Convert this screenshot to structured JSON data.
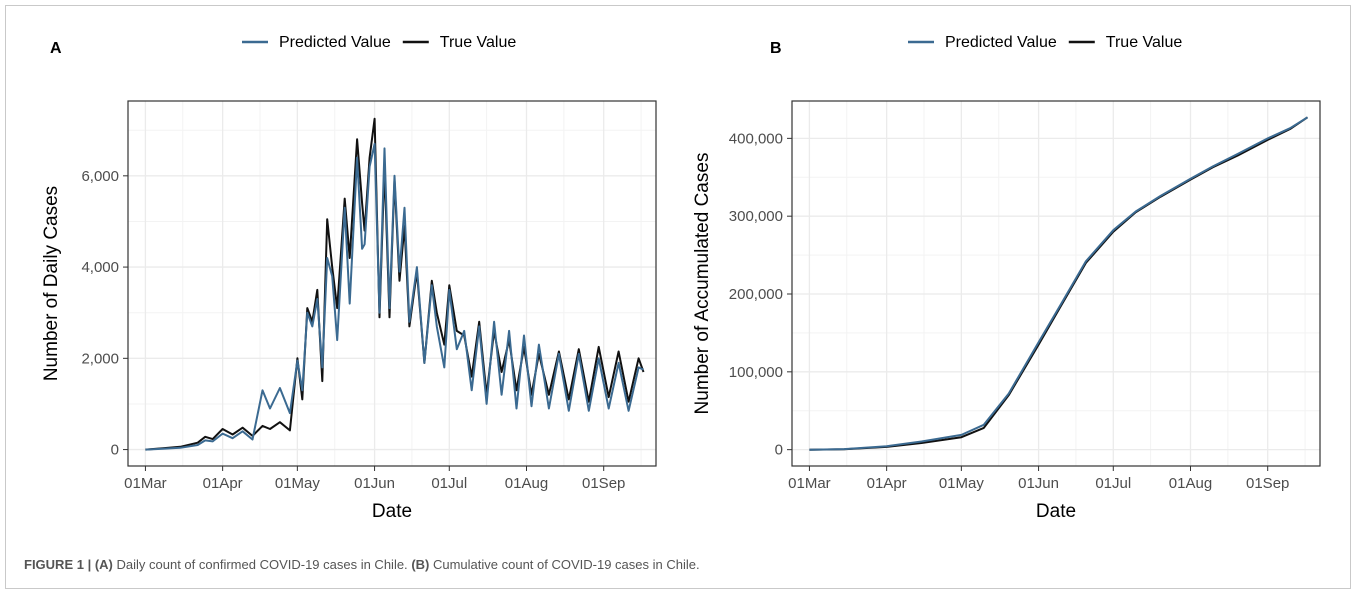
{
  "caption": {
    "figure_label": "FIGURE 1 |",
    "a_label": "(A)",
    "a_text": "Daily count of confirmed COVID-19 cases in Chile.",
    "b_label": "(B)",
    "b_text": "Cumulative count of COVID-19 cases in Chile."
  },
  "colors": {
    "predicted": "#3b6a91",
    "true": "#111111",
    "panel_border": "#333333",
    "grid": "#ebebeb",
    "axis_text": "#4d4d4d"
  },
  "chart_data": [
    {
      "panel": "A",
      "type": "line",
      "title": "",
      "xlabel": "Date",
      "ylabel": "Number of Daily Cases",
      "x_tick_labels": [
        "01Mar",
        "01Apr",
        "01May",
        "01Jun",
        "01Jul",
        "01Aug",
        "01Sep"
      ],
      "y_ticks": [
        0,
        2000,
        4000,
        6000
      ],
      "y_tick_labels": [
        "0",
        "2,000",
        "4,000",
        "6,000"
      ],
      "xlim": [
        "2020-02-23",
        "2020-09-22"
      ],
      "ylim": [
        -360,
        7640
      ],
      "grid": true,
      "legend": {
        "position": "top",
        "entries": [
          "Predicted Value",
          "True Value"
        ]
      },
      "series": [
        {
          "name": "True Value",
          "x": [
            "2020-03-01",
            "2020-03-08",
            "2020-03-15",
            "2020-03-22",
            "2020-03-25",
            "2020-03-28",
            "2020-04-01",
            "2020-04-05",
            "2020-04-09",
            "2020-04-13",
            "2020-04-17",
            "2020-04-20",
            "2020-04-24",
            "2020-04-28",
            "2020-05-01",
            "2020-05-03",
            "2020-05-05",
            "2020-05-07",
            "2020-05-09",
            "2020-05-11",
            "2020-05-13",
            "2020-05-15",
            "2020-05-17",
            "2020-05-20",
            "2020-05-22",
            "2020-05-25",
            "2020-05-27",
            "2020-05-28",
            "2020-05-30",
            "2020-06-01",
            "2020-06-03",
            "2020-06-05",
            "2020-06-07",
            "2020-06-09",
            "2020-06-11",
            "2020-06-13",
            "2020-06-15",
            "2020-06-18",
            "2020-06-21",
            "2020-06-24",
            "2020-06-26",
            "2020-06-29",
            "2020-07-01",
            "2020-07-04",
            "2020-07-07",
            "2020-07-10",
            "2020-07-13",
            "2020-07-16",
            "2020-07-19",
            "2020-07-22",
            "2020-07-25",
            "2020-07-28",
            "2020-07-31",
            "2020-08-03",
            "2020-08-06",
            "2020-08-10",
            "2020-08-14",
            "2020-08-18",
            "2020-08-22",
            "2020-08-26",
            "2020-08-30",
            "2020-09-03",
            "2020-09-07",
            "2020-09-11",
            "2020-09-15",
            "2020-09-17"
          ],
          "values": [
            0,
            30,
            60,
            150,
            280,
            230,
            450,
            330,
            480,
            300,
            520,
            450,
            600,
            420,
            2000,
            1100,
            3100,
            2800,
            3500,
            1500,
            5050,
            4000,
            3100,
            5500,
            4200,
            6800,
            5400,
            4800,
            6400,
            7250,
            2900,
            6200,
            2900,
            5900,
            3700,
            4900,
            2700,
            3900,
            1900,
            3700,
            3000,
            2300,
            3600,
            2600,
            2500,
            1600,
            2800,
            1200,
            2600,
            1700,
            2400,
            1300,
            2250,
            1200,
            2100,
            1200,
            2150,
            1100,
            2200,
            1050,
            2250,
            1150,
            2150,
            1050,
            2000,
            1700
          ]
        },
        {
          "name": "Predicted Value",
          "x": [
            "2020-03-01",
            "2020-03-08",
            "2020-03-15",
            "2020-03-22",
            "2020-03-25",
            "2020-03-28",
            "2020-04-01",
            "2020-04-05",
            "2020-04-09",
            "2020-04-13",
            "2020-04-17",
            "2020-04-20",
            "2020-04-24",
            "2020-04-28",
            "2020-05-01",
            "2020-05-03",
            "2020-05-05",
            "2020-05-07",
            "2020-05-09",
            "2020-05-11",
            "2020-05-13",
            "2020-05-15",
            "2020-05-17",
            "2020-05-20",
            "2020-05-22",
            "2020-05-25",
            "2020-05-27",
            "2020-05-28",
            "2020-05-30",
            "2020-06-01",
            "2020-06-03",
            "2020-06-05",
            "2020-06-07",
            "2020-06-09",
            "2020-06-11",
            "2020-06-13",
            "2020-06-15",
            "2020-06-18",
            "2020-06-21",
            "2020-06-24",
            "2020-06-26",
            "2020-06-29",
            "2020-07-01",
            "2020-07-04",
            "2020-07-07",
            "2020-07-10",
            "2020-07-13",
            "2020-07-16",
            "2020-07-19",
            "2020-07-22",
            "2020-07-25",
            "2020-07-28",
            "2020-07-31",
            "2020-08-03",
            "2020-08-06",
            "2020-08-10",
            "2020-08-14",
            "2020-08-18",
            "2020-08-22",
            "2020-08-26",
            "2020-08-30",
            "2020-09-03",
            "2020-09-07",
            "2020-09-11",
            "2020-09-15",
            "2020-09-17"
          ],
          "values": [
            0,
            20,
            40,
            100,
            200,
            180,
            350,
            250,
            400,
            220,
            1300,
            900,
            1350,
            800,
            1950,
            1300,
            3000,
            2700,
            3300,
            1800,
            4200,
            3800,
            2400,
            5300,
            3200,
            6400,
            4400,
            4500,
            6200,
            6700,
            3000,
            6600,
            3100,
            6000,
            3900,
            5300,
            2800,
            4000,
            1900,
            3600,
            2700,
            1800,
            3500,
            2200,
            2600,
            1300,
            2700,
            1000,
            2800,
            1200,
            2600,
            900,
            2500,
            950,
            2300,
            900,
            2100,
            850,
            2100,
            850,
            2000,
            900,
            1900,
            850,
            1800,
            1750
          ]
        }
      ]
    },
    {
      "panel": "B",
      "type": "line",
      "title": "",
      "xlabel": "Date",
      "ylabel": "Number of Accumulated Cases",
      "x_tick_labels": [
        "01Mar",
        "01Apr",
        "01May",
        "01Jun",
        "01Jul",
        "01Aug",
        "01Sep"
      ],
      "y_ticks": [
        0,
        100000,
        200000,
        300000,
        400000
      ],
      "y_tick_labels": [
        "0",
        "100,000",
        "200,000",
        "300,000",
        "400,000"
      ],
      "xlim": [
        "2020-02-23",
        "2020-09-22"
      ],
      "ylim": [
        -21000,
        448000
      ],
      "grid": true,
      "legend": {
        "position": "top",
        "entries": [
          "Predicted Value",
          "True Value"
        ]
      },
      "series": [
        {
          "name": "True Value",
          "x": [
            "2020-03-01",
            "2020-03-15",
            "2020-04-01",
            "2020-04-15",
            "2020-05-01",
            "2020-05-10",
            "2020-05-20",
            "2020-06-01",
            "2020-06-10",
            "2020-06-20",
            "2020-07-01",
            "2020-07-10",
            "2020-07-20",
            "2020-08-01",
            "2020-08-10",
            "2020-08-20",
            "2020-09-01",
            "2020-09-10",
            "2020-09-17"
          ],
          "values": [
            0,
            500,
            3500,
            8500,
            16000,
            28000,
            70000,
            135000,
            185000,
            240000,
            280000,
            305000,
            325000,
            347000,
            363000,
            378000,
            398000,
            412000,
            427000
          ]
        },
        {
          "name": "Predicted Value",
          "x": [
            "2020-03-01",
            "2020-03-15",
            "2020-04-01",
            "2020-04-15",
            "2020-05-01",
            "2020-05-10",
            "2020-05-20",
            "2020-06-01",
            "2020-06-10",
            "2020-06-20",
            "2020-07-01",
            "2020-07-10",
            "2020-07-20",
            "2020-08-01",
            "2020-08-10",
            "2020-08-20",
            "2020-09-01",
            "2020-09-10",
            "2020-09-17"
          ],
          "values": [
            0,
            700,
            4500,
            10500,
            19000,
            32000,
            72000,
            138000,
            187000,
            242000,
            282000,
            306000,
            326000,
            348000,
            364000,
            380000,
            400000,
            413000,
            427000
          ]
        }
      ]
    }
  ]
}
